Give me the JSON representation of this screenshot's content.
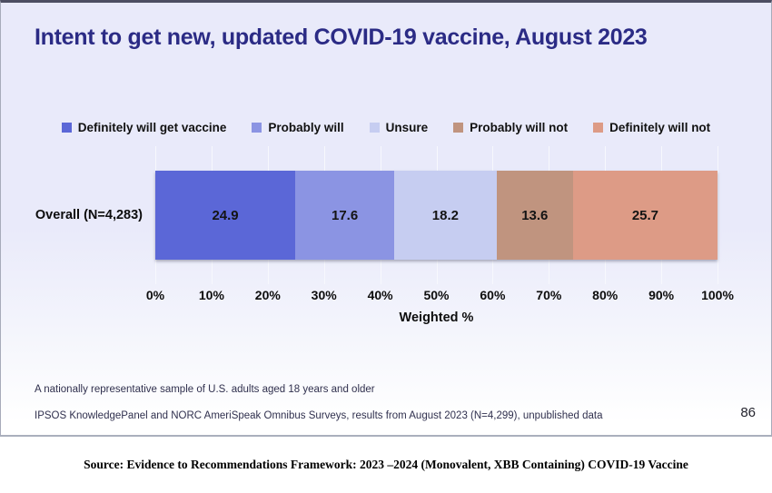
{
  "slide": {
    "title": "Intent to get new, updated COVID-19 vaccine, August 2023",
    "page_number": "86",
    "footnotes": [
      "A nationally representative sample of U.S. adults aged 18 years and older",
      "IPSOS KnowledgePanel and NORC AmeriSpeak Omnibus Surveys, results from August 2023 (N=4,299), unpublished data"
    ]
  },
  "source_line": "Source: Evidence to Recommendations Framework: 2023 –2024 (Monovalent, XBB Containing) COVID-19 Vaccine",
  "colors": {
    "slide_background_top": "#e9eafa",
    "slide_background_bottom": "#ffffff",
    "title_text": "#2b2b85",
    "gridline": "#f7f8fd",
    "bar_label_text": "#141414"
  },
  "chart_data": {
    "type": "bar",
    "orientation": "horizontal_stacked",
    "title": "Intent to get new, updated COVID-19 vaccine, August 2023",
    "categories": [
      "Overall (N=4,283)"
    ],
    "series": [
      {
        "name": "Definitely will get vaccine",
        "color": "#5b67d7",
        "values": [
          24.9
        ]
      },
      {
        "name": "Probably will",
        "color": "#8b94e3",
        "values": [
          17.6
        ]
      },
      {
        "name": "Unsure",
        "color": "#c6cdf1",
        "values": [
          18.2
        ]
      },
      {
        "name": "Probably will not",
        "color": "#c0947f",
        "values": [
          13.6
        ]
      },
      {
        "name": "Definitely will not",
        "color": "#dd9b86",
        "values": [
          25.7
        ]
      }
    ],
    "xlabel": "Weighted %",
    "xlim": [
      0,
      100
    ],
    "xtick_step": 10,
    "xtick_labels": [
      "0%",
      "10%",
      "20%",
      "30%",
      "40%",
      "50%",
      "60%",
      "70%",
      "80%",
      "90%",
      "100%"
    ],
    "grid": true,
    "legend_position": "top",
    "data_labels": true
  }
}
